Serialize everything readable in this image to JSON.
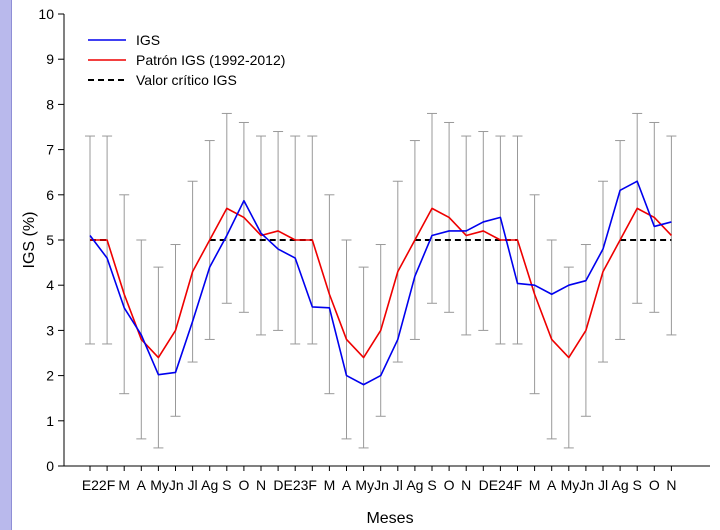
{
  "chart_data": {
    "type": "line",
    "xlabel": "Meses",
    "ylabel": "IGS (%)",
    "ylim": [
      0,
      10
    ],
    "yticks": [
      "0",
      "1",
      "2",
      "3",
      "4",
      "5",
      "6",
      "7",
      "8",
      "9",
      "10"
    ],
    "categories": [
      "E22",
      "F",
      "M",
      "A",
      "My",
      "Jn",
      "Jl",
      "Ag",
      "S",
      "O",
      "N",
      "D",
      "E23",
      "F",
      "M",
      "A",
      "My",
      "Jn",
      "Jl",
      "Ag",
      "S",
      "O",
      "N",
      "D",
      "E24",
      "F",
      "M",
      "A",
      "My",
      "Jn",
      "Jl",
      "Ag",
      "S",
      "O",
      "N"
    ],
    "tick_labels": [
      "E22F",
      "M",
      "A",
      "MyJn",
      "Jl",
      "Ag",
      "S",
      "O",
      "N",
      "DE23F",
      "M",
      "A",
      "MyJn",
      "Jl",
      "Ag",
      "S",
      "O",
      "N",
      "DE24F",
      "M",
      "A",
      "MyJn",
      "Jl",
      "Ag",
      "S",
      "O",
      "N"
    ],
    "series": [
      {
        "name": "IGS",
        "color": "#0000ee",
        "style": "solid",
        "values": [
          5.1,
          4.6,
          3.5,
          2.9,
          2.02,
          2.07,
          3.2,
          4.4,
          5.1,
          5.87,
          5.15,
          4.8,
          4.6,
          3.52,
          3.5,
          2.0,
          1.8,
          2.0,
          2.8,
          4.2,
          5.1,
          5.2,
          5.2,
          5.4,
          5.5,
          4.04,
          4.0,
          3.8,
          4.0,
          4.1,
          4.8,
          6.1,
          6.3,
          5.3,
          5.4
        ]
      },
      {
        "name": "Patrón IGS (1992-2012)",
        "color": "#ee0000",
        "style": "solid",
        "values": [
          5.0,
          5.0,
          3.8,
          2.8,
          2.4,
          3.0,
          4.3,
          5.0,
          5.7,
          5.5,
          5.1,
          5.2,
          5.0,
          5.0,
          3.8,
          2.8,
          2.4,
          3.0,
          4.3,
          5.0,
          5.7,
          5.5,
          5.1,
          5.2,
          5.0,
          5.0,
          3.8,
          2.8,
          2.4,
          3.0,
          4.3,
          5.0,
          5.7,
          5.5,
          5.1
        ]
      },
      {
        "name": "Valor crítico IGS",
        "color": "#000000",
        "style": "dashed",
        "value": 5,
        "segments": [
          [
            0,
            1
          ],
          [
            7,
            13
          ],
          [
            19,
            25
          ],
          [
            31,
            34
          ]
        ]
      }
    ],
    "error_bars": {
      "color": "#999999",
      "ranges": [
        [
          2.7,
          7.3
        ],
        [
          2.7,
          7.3
        ],
        [
          1.6,
          6.0
        ],
        [
          0.6,
          5.0
        ],
        [
          0.4,
          4.4
        ],
        [
          1.1,
          4.9
        ],
        [
          2.3,
          6.3
        ],
        [
          2.8,
          7.2
        ],
        [
          3.6,
          7.8
        ],
        [
          3.4,
          7.6
        ],
        [
          2.9,
          7.3
        ],
        [
          3.0,
          7.4
        ],
        [
          2.7,
          7.3
        ],
        [
          2.7,
          7.3
        ],
        [
          1.6,
          6.0
        ],
        [
          0.6,
          5.0
        ],
        [
          0.4,
          4.4
        ],
        [
          1.1,
          4.9
        ],
        [
          2.3,
          6.3
        ],
        [
          2.8,
          7.2
        ],
        [
          3.6,
          7.8
        ],
        [
          3.4,
          7.6
        ],
        [
          2.9,
          7.3
        ],
        [
          3.0,
          7.4
        ],
        [
          2.7,
          7.3
        ],
        [
          2.7,
          7.3
        ],
        [
          1.6,
          6.0
        ],
        [
          0.6,
          5.0
        ],
        [
          0.4,
          4.4
        ],
        [
          1.1,
          4.9
        ],
        [
          2.3,
          6.3
        ],
        [
          2.8,
          7.2
        ],
        [
          3.6,
          7.8
        ],
        [
          3.4,
          7.6
        ],
        [
          2.9,
          7.3
        ]
      ]
    },
    "legend_position": "top-left",
    "grid": false
  }
}
